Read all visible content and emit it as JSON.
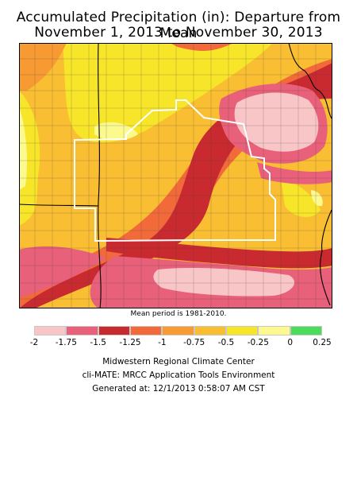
{
  "title": {
    "line1": "Accumulated Precipitation (in): Departure from Mean",
    "line2": "November 1, 2013 to November 30, 2013"
  },
  "note": "Mean period is 1981-2010.",
  "legend": {
    "bins": [
      {
        "color": "#f9c6c8"
      },
      {
        "color": "#e8607a"
      },
      {
        "color": "#c92a30"
      },
      {
        "color": "#f26a3a"
      },
      {
        "color": "#f79a32"
      },
      {
        "color": "#f9be32"
      },
      {
        "color": "#f7e52a"
      },
      {
        "color": "#fcf98f"
      },
      {
        "color": "#4cdc5c"
      }
    ],
    "ticks": [
      "-2",
      "-1.75",
      "-1.5",
      "-1.25",
      "-1",
      "-0.75",
      "-0.5",
      "-0.25",
      "0",
      "0.25"
    ]
  },
  "footer": {
    "line1": "Midwestern Regional Climate Center",
    "line2": "cli-MATE: MRCC Application Tools Environment",
    "line3": "Generated at: 12/1/2013 0:58:07 AM CST"
  },
  "colors": {
    "border": "#000000",
    "region_outline": "#ffffff"
  }
}
